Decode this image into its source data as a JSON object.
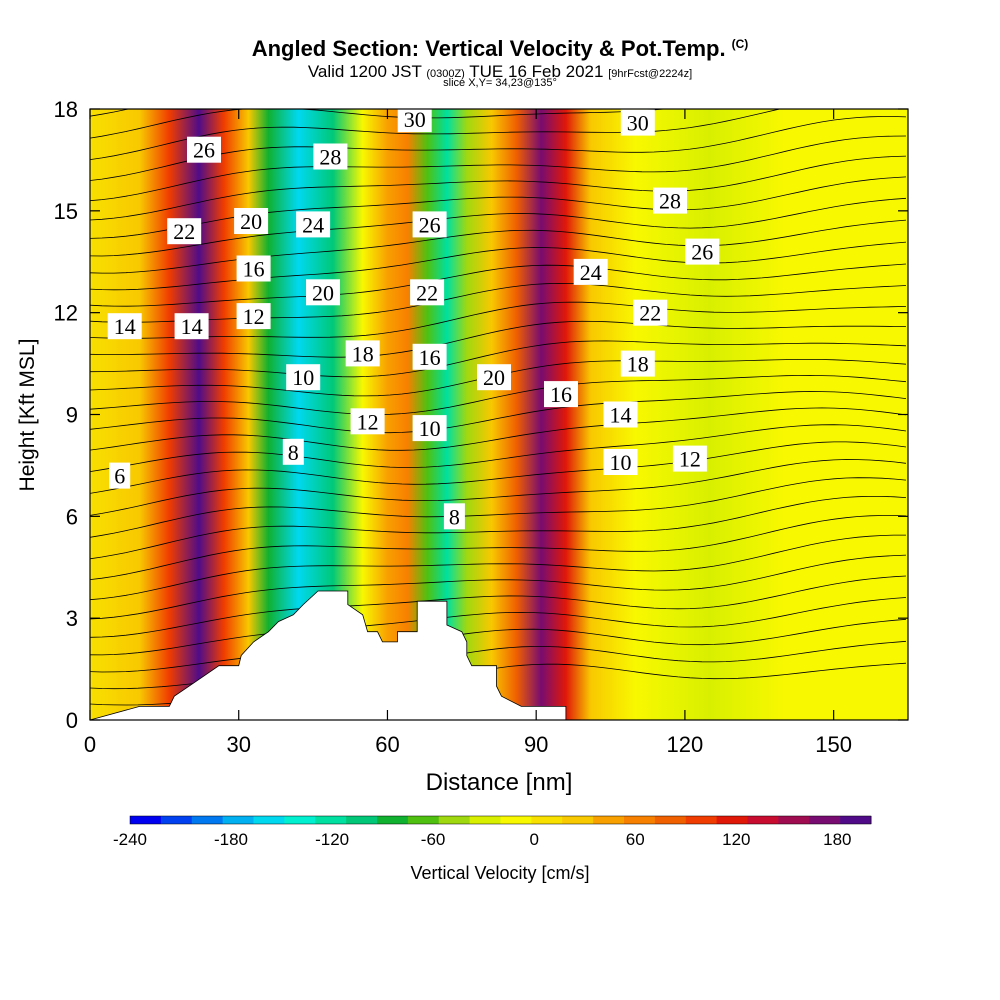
{
  "header": {
    "title": "Angled Section: Vertical Velocity & Pot.Temp.",
    "copyright": "(C)",
    "valid_prefix": "Valid 1200 JST",
    "valid_utc": "(0300Z)",
    "valid_date": "TUE 16 Feb 2021",
    "forecast": "[9hrFcst@2224z]",
    "slice": "slice X,Y= 34,23@135°"
  },
  "colorbar": {
    "title": "Vertical Velocity [cm/s]",
    "tick_labels": [
      "-240",
      "-180",
      "-120",
      "-60",
      "0",
      "60",
      "120",
      "180"
    ],
    "colors": [
      "#0000f0",
      "#0040f0",
      "#0078f0",
      "#00b0f0",
      "#00d8f0",
      "#00f0d0",
      "#00e0a0",
      "#00c878",
      "#10b030",
      "#50c010",
      "#a0d810",
      "#d8f000",
      "#f8f800",
      "#f8e000",
      "#f8c800",
      "#f8a000",
      "#f88000",
      "#f06000",
      "#f03c00",
      "#e01808",
      "#c80c30",
      "#a00c50",
      "#780c70",
      "#500c88"
    ],
    "range": [
      -240,
      200
    ]
  },
  "chart_data": {
    "type": "contour",
    "xlabel": "Distance [nm]",
    "ylabel": "Height [Kft MSL]",
    "xlim": [
      0,
      165
    ],
    "ylim": [
      0,
      18
    ],
    "xticks": [
      0,
      30,
      60,
      90,
      120,
      150
    ],
    "yticks": [
      0,
      3,
      6,
      9,
      12,
      15,
      18
    ],
    "xtick_labels": [
      "0",
      "30",
      "60",
      "90",
      "120",
      "150"
    ],
    "ytick_labels": [
      "0",
      "3",
      "6",
      "9",
      "12",
      "15",
      "18"
    ],
    "velocity_bands": [
      {
        "x": 0,
        "value": 10
      },
      {
        "x": 10,
        "value": 30
      },
      {
        "x": 16,
        "value": 90
      },
      {
        "x": 22,
        "value": 185
      },
      {
        "x": 27,
        "value": 100
      },
      {
        "x": 32,
        "value": 20
      },
      {
        "x": 36,
        "value": -80
      },
      {
        "x": 42,
        "value": -150
      },
      {
        "x": 49,
        "value": -100
      },
      {
        "x": 55,
        "value": -10
      },
      {
        "x": 60,
        "value": 50
      },
      {
        "x": 64,
        "value": 70
      },
      {
        "x": 68,
        "value": -60
      },
      {
        "x": 72,
        "value": -130
      },
      {
        "x": 76,
        "value": -40
      },
      {
        "x": 81,
        "value": 30
      },
      {
        "x": 86,
        "value": 80
      },
      {
        "x": 91,
        "value": 180
      },
      {
        "x": 96,
        "value": 120
      },
      {
        "x": 101,
        "value": 20
      },
      {
        "x": 110,
        "value": -10
      },
      {
        "x": 125,
        "value": -30
      },
      {
        "x": 140,
        "value": -20
      },
      {
        "x": 155,
        "value": -10
      },
      {
        "x": 165,
        "value": -20
      }
    ],
    "terrain_steps": [
      {
        "x": 0,
        "h": 0
      },
      {
        "x": 10,
        "h": 0.4
      },
      {
        "x": 16,
        "h": 0.4
      },
      {
        "x": 17,
        "h": 0.7
      },
      {
        "x": 20,
        "h": 1.0
      },
      {
        "x": 23,
        "h": 1.3
      },
      {
        "x": 26,
        "h": 1.6
      },
      {
        "x": 30,
        "h": 1.6
      },
      {
        "x": 30.5,
        "h": 1.9
      },
      {
        "x": 33,
        "h": 2.3
      },
      {
        "x": 36,
        "h": 2.6
      },
      {
        "x": 38,
        "h": 2.9
      },
      {
        "x": 41,
        "h": 3.1
      },
      {
        "x": 43,
        "h": 3.4
      },
      {
        "x": 46,
        "h": 3.8
      },
      {
        "x": 52,
        "h": 3.8
      },
      {
        "x": 52,
        "h": 3.4
      },
      {
        "x": 55,
        "h": 3.1
      },
      {
        "x": 56,
        "h": 2.6
      },
      {
        "x": 58,
        "h": 2.6
      },
      {
        "x": 59,
        "h": 2.3
      },
      {
        "x": 62,
        "h": 2.3
      },
      {
        "x": 62,
        "h": 2.6
      },
      {
        "x": 66,
        "h": 2.6
      },
      {
        "x": 66,
        "h": 3.5
      },
      {
        "x": 72,
        "h": 3.5
      },
      {
        "x": 72,
        "h": 2.8
      },
      {
        "x": 75,
        "h": 2.6
      },
      {
        "x": 76,
        "h": 2.3
      },
      {
        "x": 76,
        "h": 1.9
      },
      {
        "x": 77,
        "h": 1.6
      },
      {
        "x": 82,
        "h": 1.6
      },
      {
        "x": 82,
        "h": 1.0
      },
      {
        "x": 83,
        "h": 0.7
      },
      {
        "x": 87,
        "h": 0.4
      },
      {
        "x": 96,
        "h": 0.4
      },
      {
        "x": 96,
        "h": 0
      },
      {
        "x": 165,
        "h": 0
      }
    ],
    "theta_labels": [
      {
        "text": "26",
        "x": 23,
        "y": 16.8
      },
      {
        "text": "22",
        "x": 19,
        "y": 14.4
      },
      {
        "text": "20",
        "x": 32.5,
        "y": 14.7
      },
      {
        "text": "16",
        "x": 33,
        "y": 13.3
      },
      {
        "text": "14",
        "x": 20.5,
        "y": 11.6
      },
      {
        "text": "12",
        "x": 33,
        "y": 11.9
      },
      {
        "text": "14",
        "x": 7,
        "y": 11.6
      },
      {
        "text": "6",
        "x": 6,
        "y": 7.2
      },
      {
        "text": "8",
        "x": 41,
        "y": 7.9
      },
      {
        "text": "10",
        "x": 43,
        "y": 10.1
      },
      {
        "text": "12",
        "x": 56,
        "y": 8.8
      },
      {
        "text": "18",
        "x": 55,
        "y": 10.8
      },
      {
        "text": "20",
        "x": 47,
        "y": 12.6
      },
      {
        "text": "24",
        "x": 45,
        "y": 14.6
      },
      {
        "text": "28",
        "x": 48.5,
        "y": 16.6
      },
      {
        "text": "30",
        "x": 65.5,
        "y": 17.7
      },
      {
        "text": "26",
        "x": 68.5,
        "y": 14.6
      },
      {
        "text": "22",
        "x": 68,
        "y": 12.6
      },
      {
        "text": "16",
        "x": 68.5,
        "y": 10.7
      },
      {
        "text": "10",
        "x": 68.5,
        "y": 8.6
      },
      {
        "text": "8",
        "x": 73.5,
        "y": 6.0
      },
      {
        "text": "20",
        "x": 81.5,
        "y": 10.1
      },
      {
        "text": "16",
        "x": 95,
        "y": 9.6
      },
      {
        "text": "24",
        "x": 101,
        "y": 13.2
      },
      {
        "text": "30",
        "x": 110.5,
        "y": 17.6
      },
      {
        "text": "28",
        "x": 117,
        "y": 15.3
      },
      {
        "text": "26",
        "x": 123.5,
        "y": 13.8
      },
      {
        "text": "22",
        "x": 113,
        "y": 12.0
      },
      {
        "text": "18",
        "x": 110.5,
        "y": 10.5
      },
      {
        "text": "14",
        "x": 107,
        "y": 9.0
      },
      {
        "text": "10",
        "x": 107,
        "y": 7.6
      },
      {
        "text": "12",
        "x": 121,
        "y": 7.7
      }
    ]
  }
}
